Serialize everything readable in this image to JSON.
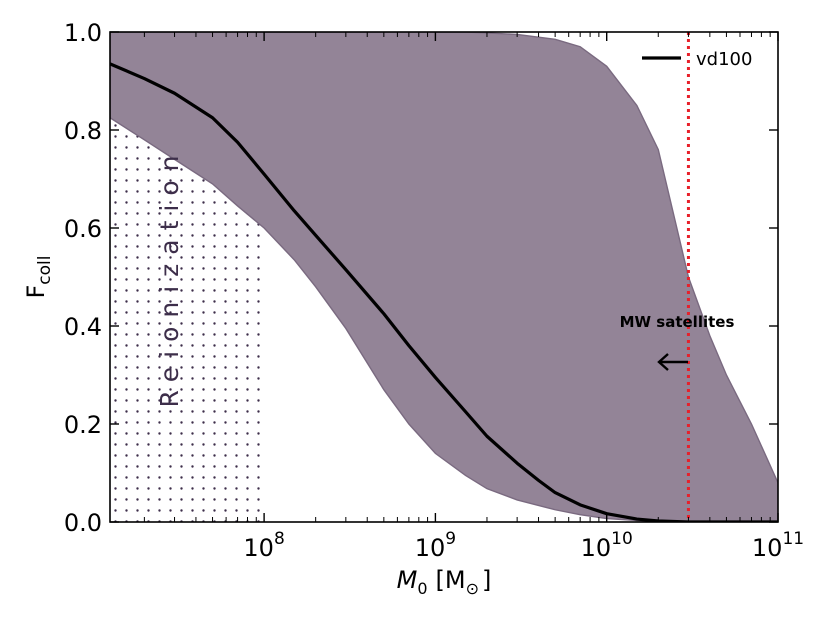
{
  "chart_data": {
    "type": "area",
    "x_scale": "log",
    "xlim": [
      12600000,
      100000000000
    ],
    "ylim": [
      0,
      1
    ],
    "grid": false,
    "legend_position": "top-right",
    "xlabel_main": "M",
    "xlabel_sub": "0",
    "xlabel_unit": "[M",
    "xlabel_unit_sym": "⊙",
    "xlabel_unit_close": "]",
    "ylabel_main": "F",
    "ylabel_sub": "coll",
    "x_ticks": [
      {
        "value": 100000000,
        "base": "10",
        "exp": "8"
      },
      {
        "value": 1000000000,
        "base": "10",
        "exp": "9"
      },
      {
        "value": 10000000000,
        "base": "10",
        "exp": "10"
      },
      {
        "value": 100000000000,
        "base": "10",
        "exp": "11"
      }
    ],
    "y_ticks": [
      {
        "value": 0.0,
        "label": "0.0"
      },
      {
        "value": 0.2,
        "label": "0.2"
      },
      {
        "value": 0.4,
        "label": "0.4"
      },
      {
        "value": 0.6,
        "label": "0.6"
      },
      {
        "value": 0.8,
        "label": "0.8"
      },
      {
        "value": 1.0,
        "label": "1.0"
      }
    ],
    "series": [
      {
        "name": "vd100",
        "color": "#000000",
        "x": [
          12600000,
          20000000,
          30000000,
          50000000,
          70000000,
          100000000,
          150000000,
          200000000,
          300000000,
          500000000,
          700000000,
          1000000000,
          1500000000,
          2000000000,
          3000000000,
          4000000000,
          5000000000,
          7000000000,
          10000000000,
          15000000000,
          20000000000,
          30000000000,
          50000000000,
          100000000000
        ],
        "y": [
          0.935,
          0.905,
          0.875,
          0.825,
          0.775,
          0.71,
          0.635,
          0.585,
          0.515,
          0.425,
          0.36,
          0.295,
          0.225,
          0.175,
          0.12,
          0.085,
          0.06,
          0.035,
          0.017,
          0.006,
          0.002,
          0.0,
          0.0,
          0.0
        ]
      }
    ],
    "band": {
      "color": "#938497",
      "edge_color": "#7a6a80",
      "x": [
        12600000,
        20000000,
        30000000,
        50000000,
        70000000,
        100000000,
        150000000,
        200000000,
        300000000,
        500000000,
        700000000,
        1000000000,
        1500000000,
        2000000000,
        3000000000,
        5000000000,
        7000000000,
        10000000000,
        15000000000,
        20000000000,
        30000000000,
        40000000000,
        50000000000,
        70000000000,
        100000000000
      ],
      "upper": [
        1.0,
        1.0,
        1.0,
        1.0,
        1.0,
        1.0,
        1.0,
        1.0,
        1.0,
        1.0,
        1.0,
        1.0,
        1.0,
        0.998,
        0.995,
        0.985,
        0.97,
        0.93,
        0.85,
        0.76,
        0.5,
        0.38,
        0.3,
        0.2,
        0.08
      ],
      "lower": [
        0.825,
        0.78,
        0.74,
        0.69,
        0.645,
        0.6,
        0.535,
        0.48,
        0.395,
        0.27,
        0.2,
        0.14,
        0.095,
        0.068,
        0.045,
        0.025,
        0.015,
        0.007,
        0.003,
        0.001,
        0.0,
        0.0,
        0.0,
        0.0,
        0.0
      ]
    },
    "reionization_region": {
      "x_range": [
        12600000,
        100000000
      ],
      "label": "Reionization",
      "label_color": "#3d2e4a"
    },
    "vertical_line": {
      "x": 30000000000,
      "color": "#e8202a",
      "style": "dotted"
    },
    "annotations": [
      {
        "text": "MW satellites",
        "arrow": "left"
      }
    ]
  }
}
